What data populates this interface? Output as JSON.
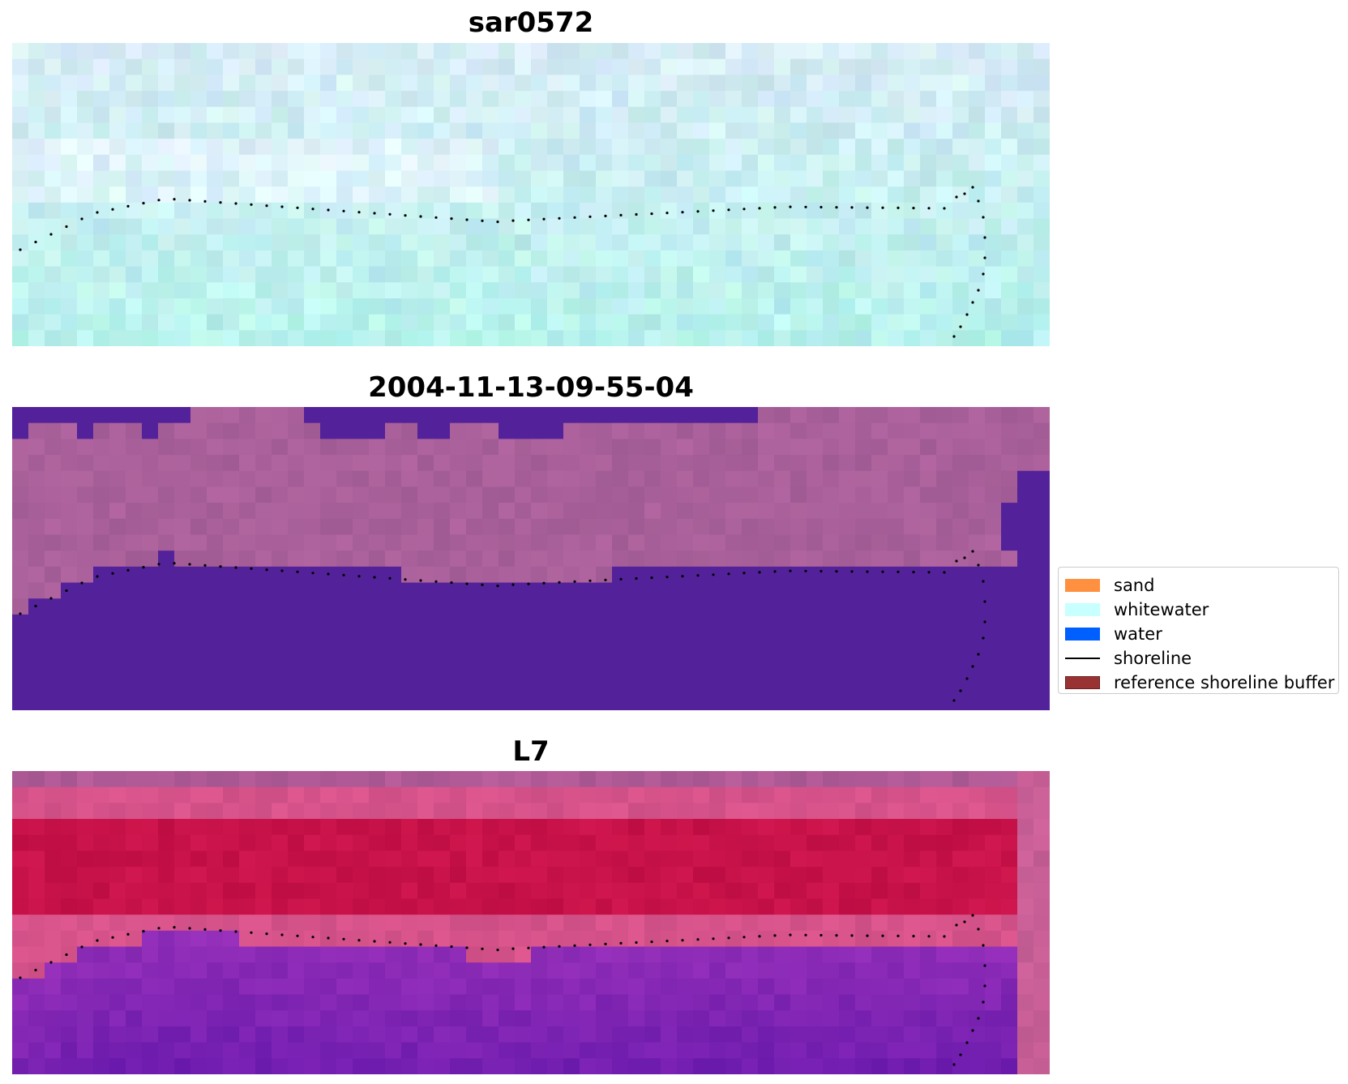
{
  "panels": [
    {
      "id": "sar",
      "title": "sar0572"
    },
    {
      "id": "classified",
      "title": "2004-11-13-09-55-04"
    },
    {
      "id": "l7",
      "title": "L7"
    }
  ],
  "legend": {
    "items": [
      {
        "label": "sand",
        "color": "#ff9040",
        "kind": "patch",
        "icon": "sand-swatch"
      },
      {
        "label": "whitewater",
        "color": "#c8ffff",
        "kind": "patch",
        "icon": "whitewater-swatch"
      },
      {
        "label": "water",
        "color": "#0060ff",
        "kind": "patch",
        "icon": "water-swatch"
      },
      {
        "label": "shoreline",
        "color": "#000000",
        "kind": "line",
        "icon": "shoreline-line"
      },
      {
        "label": "reference shoreline buffer",
        "color": "#993333",
        "edge": "#6b1f1f",
        "kind": "patch",
        "icon": "buffer-swatch"
      }
    ]
  },
  "colors": {
    "water_class": "#53229a",
    "sar_base": "#bfe3ea",
    "sand_class_tone": "#a9609a",
    "l7_upper": "#c23f6c",
    "l7_lower": "#7e1aa4"
  }
}
